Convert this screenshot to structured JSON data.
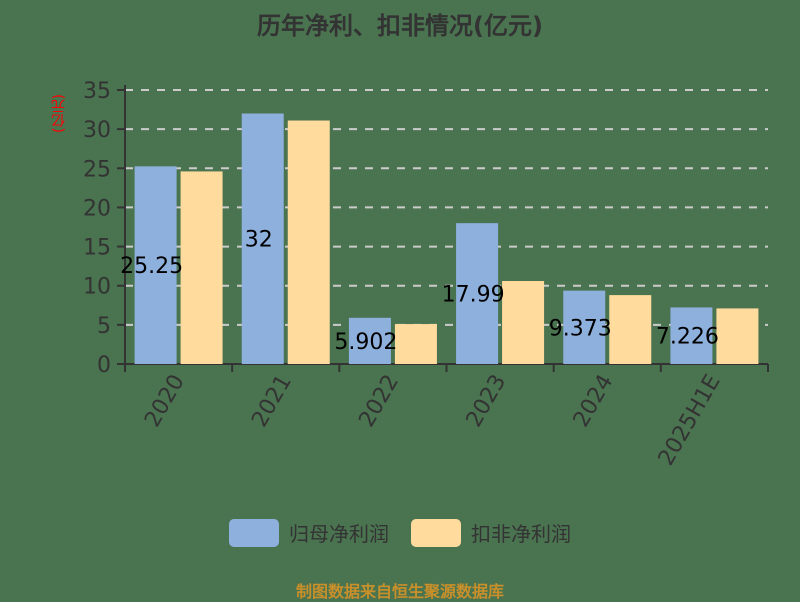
{
  "chart_data": {
    "type": "bar",
    "title": "历年净利、扣非情况(亿元)",
    "xlabel": "",
    "ylabel": "(亿元)",
    "ylim": [
      0,
      35
    ],
    "yticks": [
      0,
      5,
      10,
      15,
      20,
      25,
      30,
      35
    ],
    "grid": true,
    "legend_position": "bottom",
    "categories": [
      "2020",
      "2021",
      "2022",
      "2023",
      "2024",
      "2025H1E"
    ],
    "series": [
      {
        "name": "归母净利润",
        "color": "#8eb0dd",
        "values": [
          25.25,
          32,
          5.902,
          17.99,
          9.373,
          7.226
        ],
        "labels": [
          "25.25",
          "32",
          "5.902",
          "17.99",
          "9.373",
          "7.226"
        ]
      },
      {
        "name": "扣非净利润",
        "color": "#ffdb9e",
        "values": [
          24.6,
          31.1,
          5.1,
          10.6,
          8.8,
          7.1
        ]
      }
    ]
  },
  "title": "历年净利、扣非情况(亿元)",
  "ylabel": "(亿元)",
  "legend": [
    {
      "label": "归母净利润",
      "color": "#8eb0dd"
    },
    {
      "label": "扣非净利润",
      "color": "#ffdb9e"
    }
  ],
  "footer": "制图数据来自恒生聚源数据库"
}
